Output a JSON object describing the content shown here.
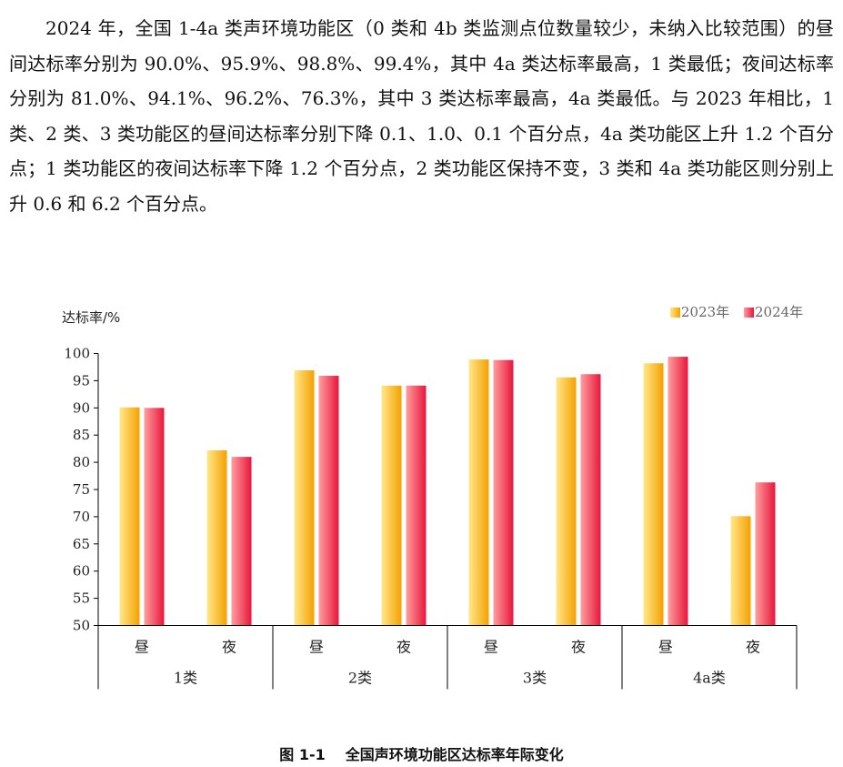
{
  "paragraph": "2024 年，全国 1-4a 类声环境功能区（0 类和 4b 类监测点位数量较少，未纳入比较范围）的昼间达标率分别为 90.0%、95.9%、98.8%、99.4%，其中 4a 类达标率最高，1 类最低；夜间达标率分别为 81.0%、94.1%、96.2%、76.3%，其中 3 类达标率最高，4a 类最低。与 2023 年相比，1 类、2 类、3 类功能区的昼间达标率分别下降 0.1、1.0、0.1 个百分点，4a 类功能区上升 1.2 个百分点；1 类功能区的夜间达标率下降 1.2 个百分点，2 类功能区保持不变，3 类和 4a 类功能区则分别上升 0.6 和 6.2 个百分点。",
  "caption": {
    "number": "图 1-1",
    "title": "全国声环境功能区达标率年际变化"
  },
  "chart_data": {
    "type": "bar",
    "ylabel": "达标率/%",
    "ylim": [
      50,
      100
    ],
    "yticks": [
      50,
      55,
      60,
      65,
      70,
      75,
      80,
      85,
      90,
      95,
      100
    ],
    "grid": false,
    "legend_position": "top-right",
    "groups": [
      "1类",
      "2类",
      "3类",
      "4a类"
    ],
    "categories": [
      "昼",
      "夜",
      "昼",
      "夜",
      "昼",
      "夜",
      "昼",
      "夜"
    ],
    "series": [
      {
        "name": "2023年",
        "values": [
          90.1,
          82.2,
          96.9,
          94.1,
          98.9,
          95.6,
          98.2,
          70.1
        ],
        "color_light": "#FFE88A",
        "color_dark": "#F5A000"
      },
      {
        "name": "2024年",
        "values": [
          90.0,
          81.0,
          95.9,
          94.1,
          98.8,
          96.2,
          99.4,
          76.3
        ],
        "color_light": "#FF9E9E",
        "color_dark": "#E8163C"
      }
    ]
  }
}
